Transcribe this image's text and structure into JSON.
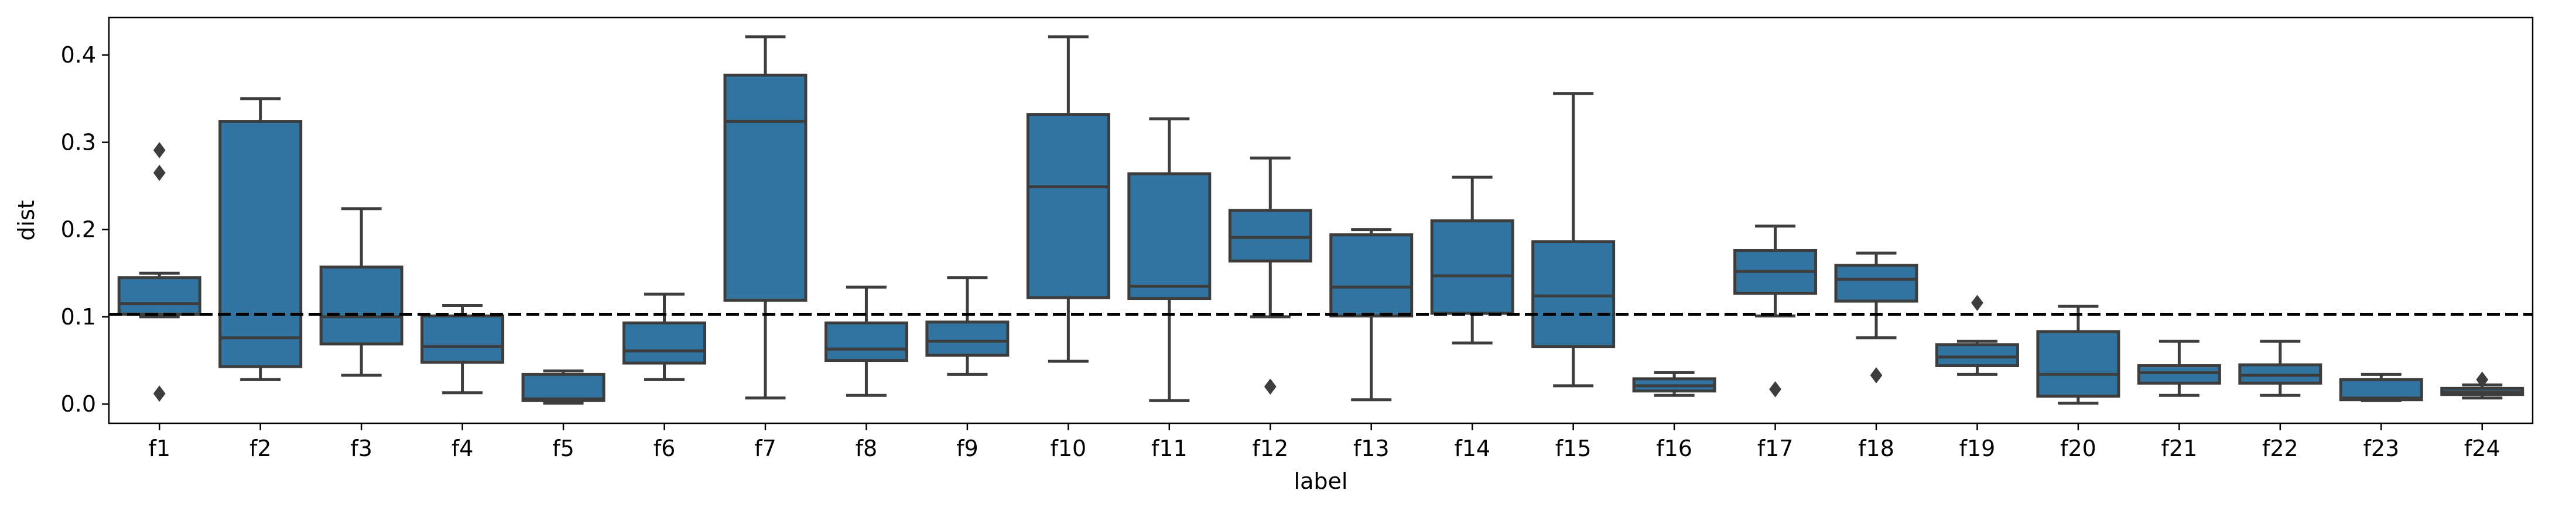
{
  "chart_data": {
    "type": "box",
    "title": "",
    "xlabel": "label",
    "ylabel": "dist",
    "ylim": [
      -0.022,
      0.443
    ],
    "yticks": [
      0.0,
      0.1,
      0.2,
      0.3,
      0.4
    ],
    "ytick_labels": [
      "0.0",
      "0.1",
      "0.2",
      "0.3",
      "0.4"
    ],
    "grid": false,
    "reference_line": {
      "y": 0.103,
      "style": "dashed",
      "color": "#000000"
    },
    "box_color": "#3274a1",
    "line_color": "#3d3d3d",
    "categories": [
      "f1",
      "f2",
      "f3",
      "f4",
      "f5",
      "f6",
      "f7",
      "f8",
      "f9",
      "f10",
      "f11",
      "f12",
      "f13",
      "f14",
      "f15",
      "f16",
      "f17",
      "f18",
      "f19",
      "f20",
      "f21",
      "f22",
      "f23",
      "f24"
    ],
    "boxes": [
      {
        "label": "f1",
        "whislo": 0.1,
        "q1": 0.103,
        "med": 0.115,
        "q3": 0.145,
        "whishi": 0.15,
        "fliers": [
          0.291,
          0.265,
          0.012
        ]
      },
      {
        "label": "f2",
        "whislo": 0.028,
        "q1": 0.043,
        "med": 0.076,
        "q3": 0.324,
        "whishi": 0.35,
        "fliers": []
      },
      {
        "label": "f3",
        "whislo": 0.033,
        "q1": 0.069,
        "med": 0.1,
        "q3": 0.157,
        "whishi": 0.224,
        "fliers": []
      },
      {
        "label": "f4",
        "whislo": 0.013,
        "q1": 0.048,
        "med": 0.066,
        "q3": 0.101,
        "whishi": 0.113,
        "fliers": []
      },
      {
        "label": "f5",
        "whislo": 0.001,
        "q1": 0.004,
        "med": 0.006,
        "q3": 0.034,
        "whishi": 0.038,
        "fliers": []
      },
      {
        "label": "f6",
        "whislo": 0.028,
        "q1": 0.047,
        "med": 0.061,
        "q3": 0.093,
        "whishi": 0.126,
        "fliers": []
      },
      {
        "label": "f7",
        "whislo": 0.007,
        "q1": 0.119,
        "med": 0.324,
        "q3": 0.377,
        "whishi": 0.421,
        "fliers": []
      },
      {
        "label": "f8",
        "whislo": 0.01,
        "q1": 0.05,
        "med": 0.063,
        "q3": 0.093,
        "whishi": 0.134,
        "fliers": []
      },
      {
        "label": "f9",
        "whislo": 0.034,
        "q1": 0.056,
        "med": 0.072,
        "q3": 0.094,
        "whishi": 0.145,
        "fliers": []
      },
      {
        "label": "f10",
        "whislo": 0.049,
        "q1": 0.122,
        "med": 0.249,
        "q3": 0.332,
        "whishi": 0.421,
        "fliers": []
      },
      {
        "label": "f11",
        "whislo": 0.004,
        "q1": 0.121,
        "med": 0.135,
        "q3": 0.264,
        "whishi": 0.327,
        "fliers": []
      },
      {
        "label": "f12",
        "whislo": 0.1,
        "q1": 0.164,
        "med": 0.191,
        "q3": 0.222,
        "whishi": 0.282,
        "fliers": [
          0.02
        ]
      },
      {
        "label": "f13",
        "whislo": 0.005,
        "q1": 0.101,
        "med": 0.134,
        "q3": 0.194,
        "whishi": 0.2,
        "fliers": []
      },
      {
        "label": "f14",
        "whislo": 0.07,
        "q1": 0.104,
        "med": 0.147,
        "q3": 0.21,
        "whishi": 0.26,
        "fliers": []
      },
      {
        "label": "f15",
        "whislo": 0.021,
        "q1": 0.066,
        "med": 0.124,
        "q3": 0.186,
        "whishi": 0.356,
        "fliers": []
      },
      {
        "label": "f16",
        "whislo": 0.01,
        "q1": 0.015,
        "med": 0.021,
        "q3": 0.029,
        "whishi": 0.036,
        "fliers": []
      },
      {
        "label": "f17",
        "whislo": 0.101,
        "q1": 0.127,
        "med": 0.152,
        "q3": 0.176,
        "whishi": 0.204,
        "fliers": [
          0.017
        ]
      },
      {
        "label": "f18",
        "whislo": 0.076,
        "q1": 0.118,
        "med": 0.143,
        "q3": 0.159,
        "whishi": 0.173,
        "fliers": [
          0.033
        ]
      },
      {
        "label": "f19",
        "whislo": 0.034,
        "q1": 0.044,
        "med": 0.054,
        "q3": 0.068,
        "whishi": 0.072,
        "fliers": [
          0.116
        ]
      },
      {
        "label": "f20",
        "whislo": 0.001,
        "q1": 0.009,
        "med": 0.034,
        "q3": 0.083,
        "whishi": 0.112,
        "fliers": []
      },
      {
        "label": "f21",
        "whislo": 0.01,
        "q1": 0.024,
        "med": 0.036,
        "q3": 0.044,
        "whishi": 0.072,
        "fliers": []
      },
      {
        "label": "f22",
        "whislo": 0.01,
        "q1": 0.024,
        "med": 0.033,
        "q3": 0.045,
        "whishi": 0.072,
        "fliers": []
      },
      {
        "label": "f23",
        "whislo": 0.004,
        "q1": 0.005,
        "med": 0.007,
        "q3": 0.028,
        "whishi": 0.034,
        "fliers": []
      },
      {
        "label": "f24",
        "whislo": 0.007,
        "q1": 0.011,
        "med": 0.014,
        "q3": 0.018,
        "whishi": 0.022,
        "fliers": [
          0.028
        ]
      }
    ]
  }
}
